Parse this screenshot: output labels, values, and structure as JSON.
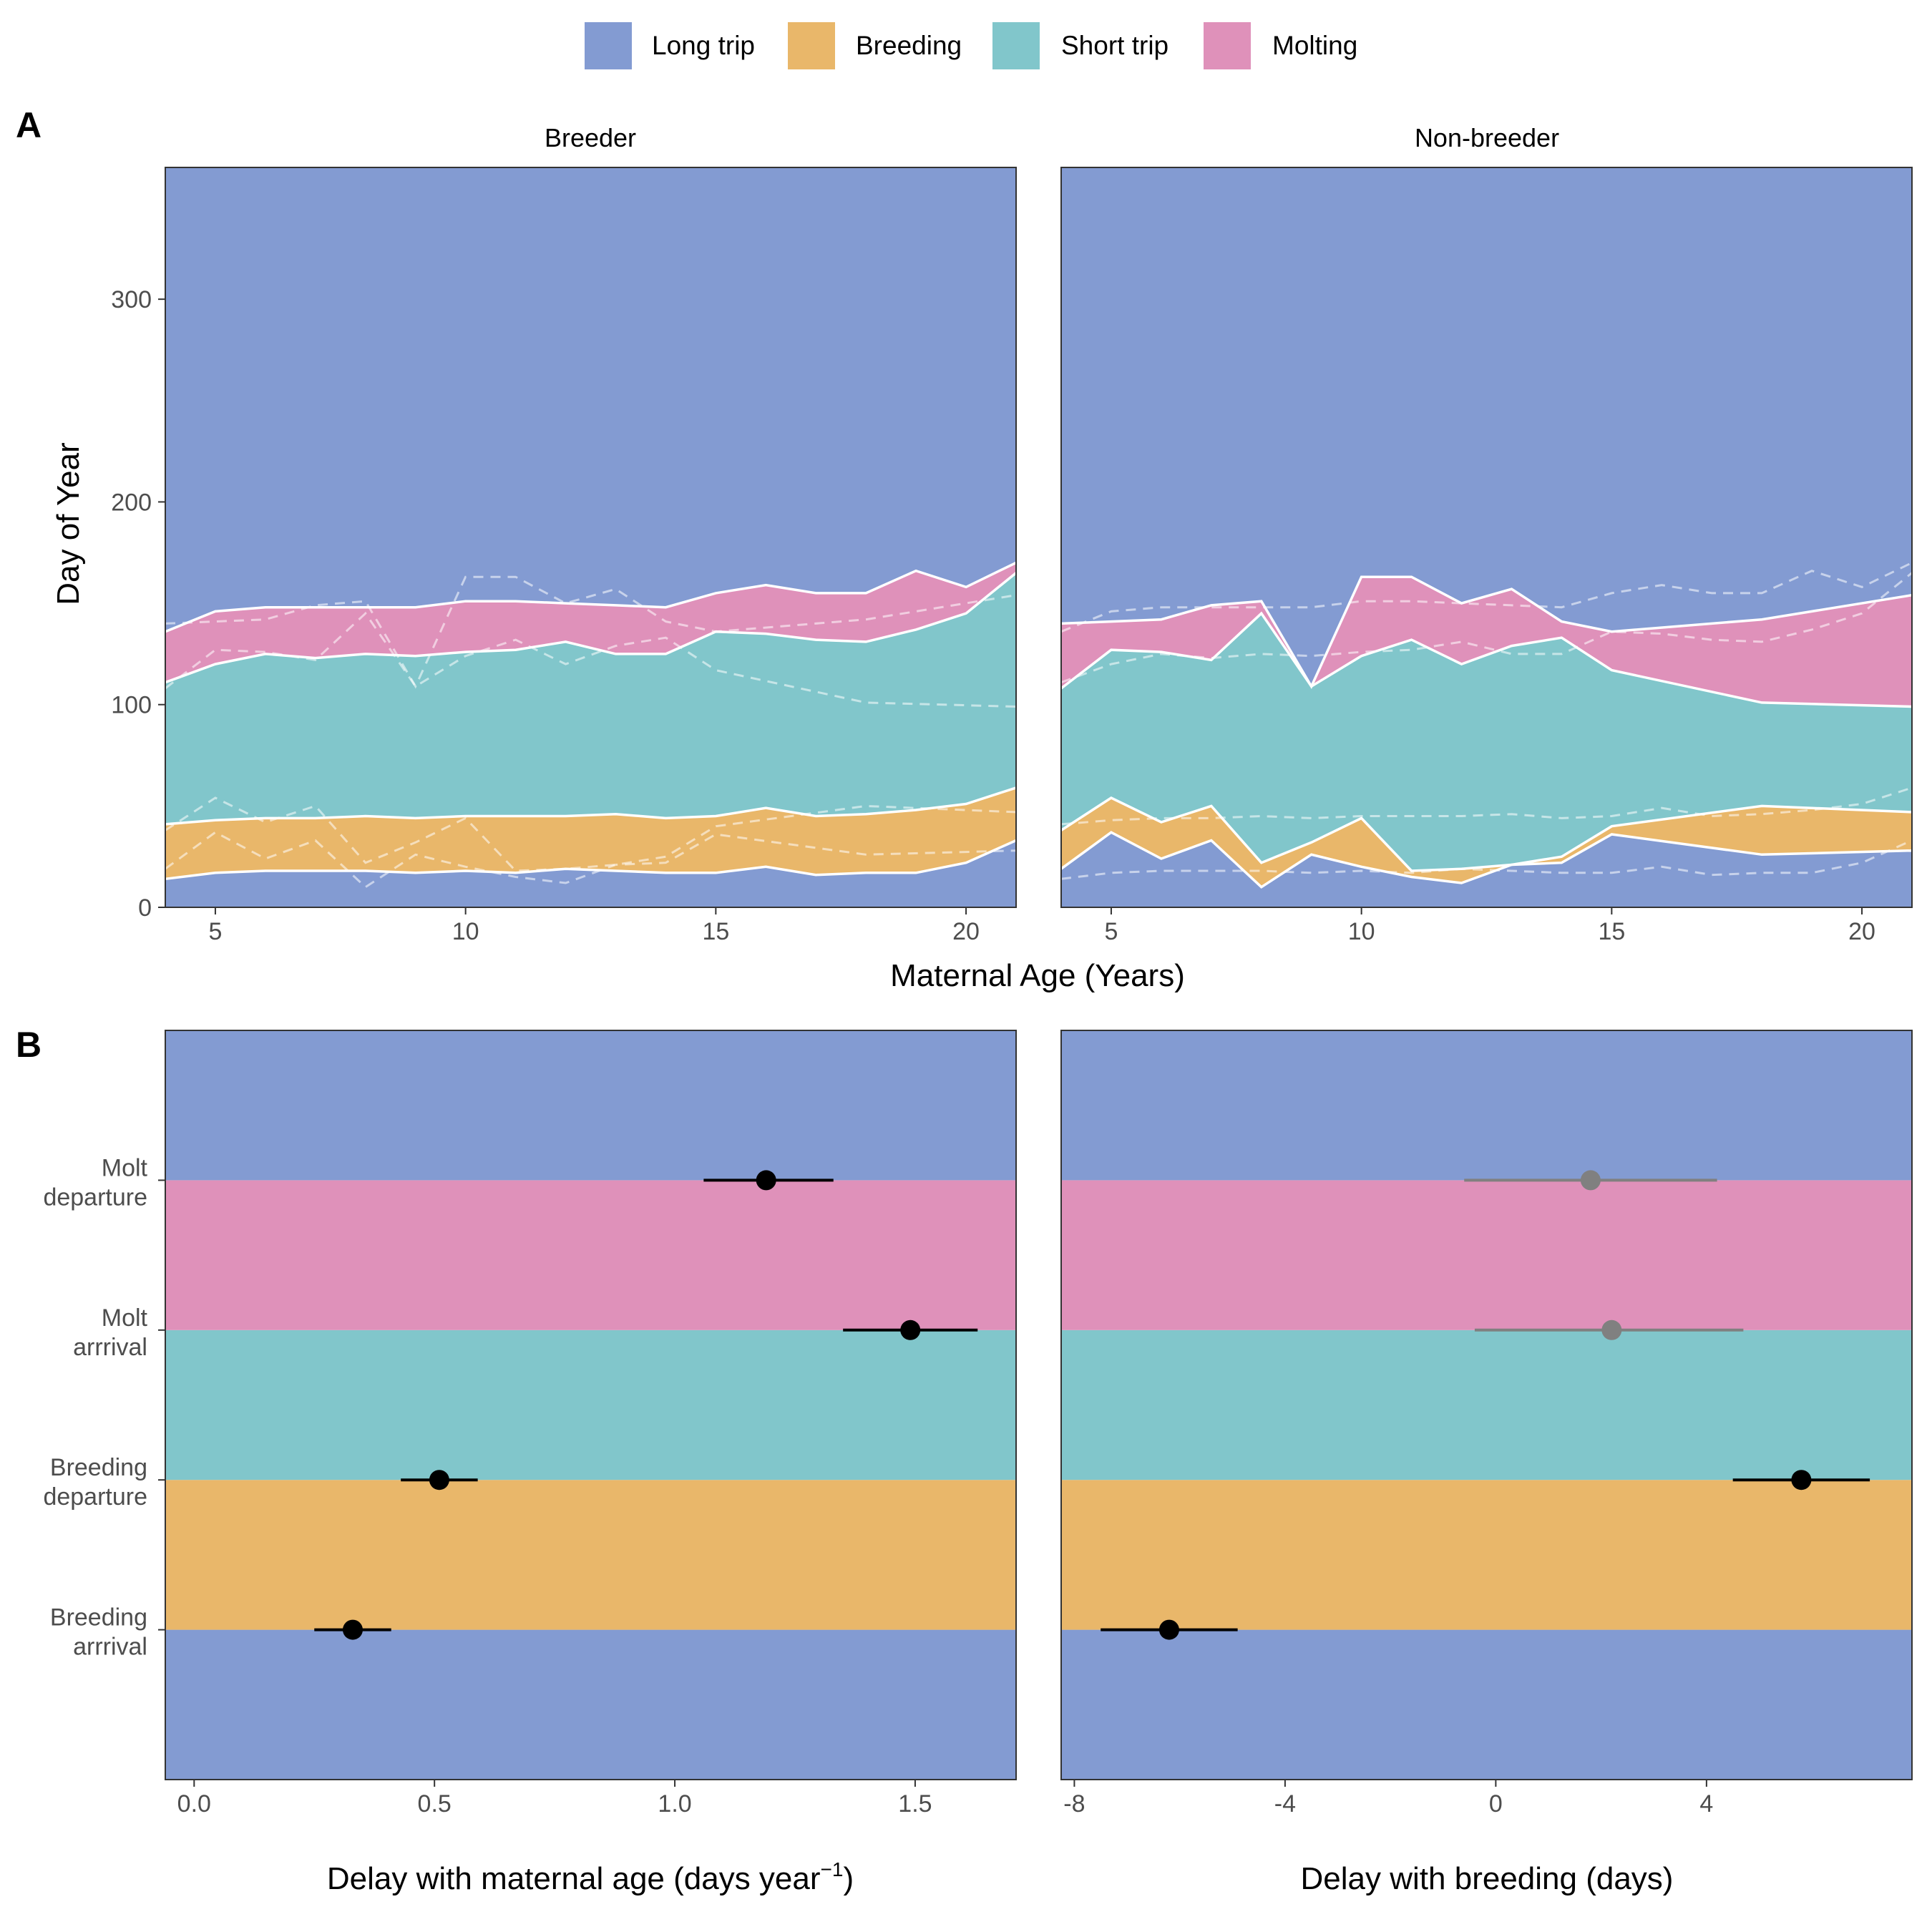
{
  "colors": {
    "long_trip": "#839BD2",
    "breeding": "#E9B76A",
    "short_trip": "#81C6CB",
    "molting": "#DF91BA",
    "ink": "#000000",
    "grey_point": "#808080"
  },
  "legend": [
    {
      "label": "Long trip",
      "color_key": "long_trip"
    },
    {
      "label": "Breeding",
      "color_key": "breeding"
    },
    {
      "label": "Short trip",
      "color_key": "short_trip"
    },
    {
      "label": "Molting",
      "color_key": "molting"
    }
  ],
  "panel_labels": {
    "a": "A",
    "b": "B"
  },
  "chart_data": [
    {
      "type": "area",
      "panel": "A",
      "ylabel": "Day of Year",
      "xlabel": "Maternal Age (Years)",
      "xlim": [
        4,
        21
      ],
      "ylim": [
        0,
        365
      ],
      "x_ticks": [
        5,
        10,
        15,
        20
      ],
      "y_ticks": [
        0,
        100,
        200,
        300
      ],
      "band_order_bottom_to_top": [
        "long_trip",
        "breeding",
        "short_trip",
        "molting",
        "long_trip"
      ],
      "facets": [
        {
          "title": "Breeder",
          "x": [
            4,
            5,
            6,
            7,
            8,
            9,
            10,
            11,
            12,
            13,
            14,
            15,
            16,
            17,
            18,
            19,
            20,
            21
          ],
          "breeding_arrival": [
            14,
            17,
            18,
            18,
            18,
            17,
            18,
            17,
            19,
            18,
            17,
            17,
            20,
            16,
            17,
            17,
            22,
            33
          ],
          "breeding_departure": [
            41,
            43,
            44,
            44,
            45,
            44,
            45,
            45,
            45,
            46,
            44,
            45,
            49,
            45,
            46,
            48,
            51,
            59
          ],
          "molt_arrival": [
            111,
            120,
            125,
            123,
            125,
            124,
            126,
            127,
            131,
            125,
            125,
            136,
            135,
            132,
            131,
            137,
            145,
            165
          ],
          "molt_departure": [
            136,
            146,
            148,
            148,
            148,
            148,
            151,
            151,
            150,
            149,
            148,
            155,
            159,
            155,
            155,
            166,
            158,
            170
          ]
        },
        {
          "title": "Non-breeder",
          "x": [
            4,
            5,
            6,
            7,
            8,
            9,
            10,
            11,
            12,
            13,
            14,
            15,
            18,
            21
          ],
          "breeding_arrival": [
            19,
            37,
            24,
            33,
            10,
            26,
            20,
            15,
            12,
            21,
            22,
            36,
            26,
            28
          ],
          "breeding_departure": [
            38,
            54,
            42,
            50,
            22,
            32,
            44,
            18,
            19,
            21,
            25,
            40,
            50,
            47
          ],
          "molt_arrival": [
            108,
            127,
            126,
            122,
            145,
            109,
            124,
            132,
            120,
            129,
            133,
            117,
            101,
            99
          ],
          "molt_departure": [
            140,
            141,
            142,
            149,
            151,
            109,
            163,
            163,
            150,
            157,
            141,
            136,
            142,
            154
          ]
        }
      ]
    },
    {
      "type": "scatter",
      "panel": "B",
      "categories": [
        "Breeding\narrrival",
        "Breeding\ndeparture",
        "Molt\narrrival",
        "Molt\ndeparture"
      ],
      "category_lines": [
        [
          "Breeding",
          "arrrival"
        ],
        [
          "Breeding",
          "departure"
        ],
        [
          "Molt",
          "arrrival"
        ],
        [
          "Molt",
          "departure"
        ]
      ],
      "band_order_bottom_to_top": [
        "long_trip",
        "breeding",
        "short_trip",
        "molting",
        "long_trip"
      ],
      "facets": [
        {
          "xlabel": "Delay with maternal age (days year",
          "xlabel_sup": "−1",
          "xlabel_end": ")",
          "xlim": [
            -0.06,
            1.71
          ],
          "x_ticks": [
            0.0,
            0.5,
            1.0,
            1.5
          ],
          "x_tick_labels": [
            "0.0",
            "0.5",
            "1.0",
            "1.5"
          ],
          "estimates": [
            0.33,
            0.51,
            1.49,
            1.19
          ],
          "lower": [
            0.25,
            0.43,
            1.35,
            1.06
          ],
          "upper": [
            0.41,
            0.59,
            1.63,
            1.33
          ],
          "point_color_keys": [
            "ink",
            "ink",
            "ink",
            "ink"
          ]
        },
        {
          "xlabel": "Delay with breeding (days)",
          "xlabel_sup": "",
          "xlabel_end": "",
          "xlim": [
            -8.25,
            7.9
          ],
          "x_ticks": [
            -8,
            -4,
            0,
            4
          ],
          "x_tick_labels": [
            "-8",
            "-4",
            "0",
            "4"
          ],
          "estimates": [
            -6.2,
            5.8,
            2.2,
            1.8
          ],
          "lower": [
            -7.5,
            4.5,
            -0.4,
            -0.6
          ],
          "upper": [
            -4.9,
            7.1,
            4.7,
            4.2
          ],
          "point_color_keys": [
            "ink",
            "ink",
            "grey_point",
            "grey_point"
          ]
        }
      ]
    }
  ]
}
